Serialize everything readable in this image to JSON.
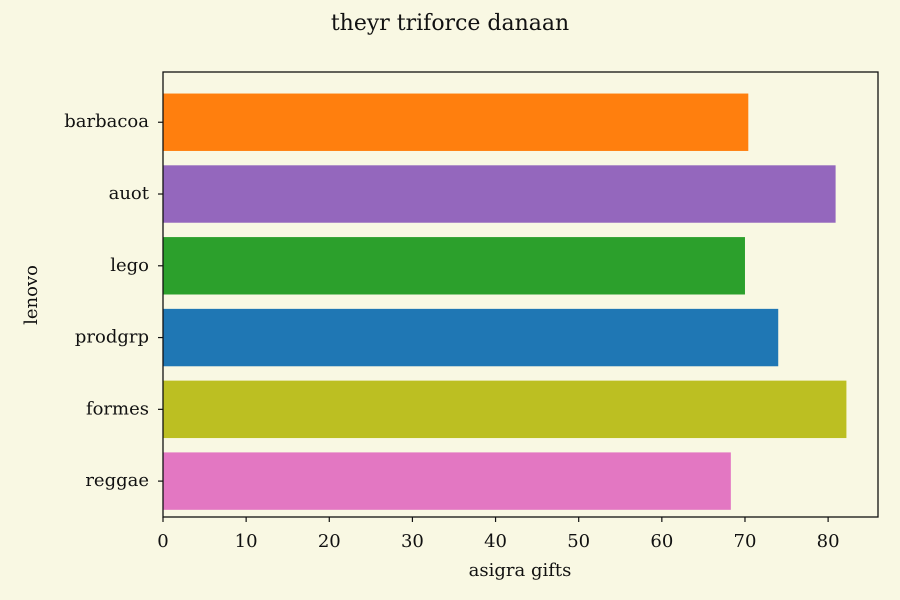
{
  "chart_data": {
    "type": "bar",
    "orientation": "horizontal",
    "title": "theyr triforce danaan",
    "xlabel": "asigra gifts",
    "ylabel": "lenovo",
    "xlim": [
      0,
      86
    ],
    "xticks": [
      0,
      10,
      20,
      30,
      40,
      50,
      60,
      70,
      80
    ],
    "categories": [
      "barbacoa",
      "auot",
      "lego",
      "prodgrp",
      "formes",
      "reggae"
    ],
    "values": [
      70.4,
      80.9,
      70.0,
      74.0,
      82.2,
      68.3
    ],
    "colors": [
      "#ff7f0e",
      "#9467bd",
      "#2ca02c",
      "#1f77b4",
      "#bcbf22",
      "#e377c2"
    ],
    "grid": false,
    "background": "#f9f8e3"
  }
}
